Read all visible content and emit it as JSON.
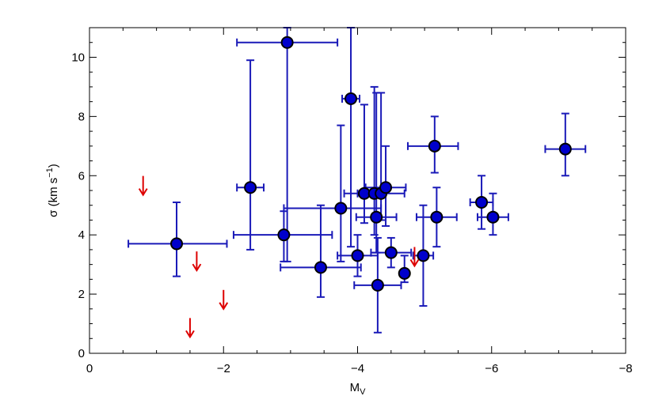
{
  "chart_data": {
    "type": "scatter",
    "title": "",
    "xlabel": "M",
    "xlabel_sub": "V",
    "ylabel": "σ  (km s",
    "ylabel_sup": "−1",
    "ylabel_tail": ")",
    "xlim": [
      0,
      -8
    ],
    "ylim": [
      0,
      11
    ],
    "xticks": [
      0,
      -2,
      -4,
      -6,
      -8
    ],
    "xtick_labels": [
      "0",
      "−2",
      "−4",
      "−6",
      "−8"
    ],
    "yticks": [
      0,
      2,
      4,
      6,
      8,
      10
    ],
    "ytick_labels": [
      "0",
      "2",
      "4",
      "6",
      "8",
      "10"
    ],
    "grid": false,
    "colors": {
      "points": "#0000cc",
      "errorbars": "#1a1ab8",
      "upper_limits": "#dd0000"
    },
    "series": [
      {
        "kind": "measurements",
        "points": [
          {
            "x": -1.3,
            "y": 3.7,
            "xerr": [
              0.72,
              0.75
            ],
            "yerr": [
              1.1,
              1.4
            ]
          },
          {
            "x": -2.4,
            "y": 5.6,
            "xerr": [
              0.2,
              0.2
            ],
            "yerr": [
              2.1,
              4.3
            ]
          },
          {
            "x": -2.9,
            "y": 4.0,
            "xerr": [
              0.75,
              0.72
            ],
            "yerr": [
              0.9,
              0.8
            ]
          },
          {
            "x": -2.95,
            "y": 10.5,
            "xerr": [
              0.75,
              0.75
            ],
            "yerr": [
              7.4,
              0.5
            ]
          },
          {
            "x": -3.45,
            "y": 2.9,
            "xerr": [
              0.6,
              0.6
            ],
            "yerr": [
              1.0,
              2.1
            ]
          },
          {
            "x": -3.75,
            "y": 4.9,
            "xerr": [
              0.85,
              0.6
            ],
            "yerr": [
              1.8,
              2.8
            ]
          },
          {
            "x": -3.9,
            "y": 8.6,
            "xerr": [
              0.13,
              0.13
            ],
            "yerr": [
              5.0,
              2.4
            ]
          },
          {
            "x": -4.0,
            "y": 3.3,
            "xerr": [
              0.3,
              0.3
            ],
            "yerr": [
              0.7,
              0.7
            ]
          },
          {
            "x": -4.1,
            "y": 5.4,
            "xerr": [
              0.3,
              0.3
            ],
            "yerr": [
              1.0,
              3.0
            ]
          },
          {
            "x": -4.25,
            "y": 5.4,
            "xerr": [
              0.1,
              0.1
            ],
            "yerr": [
              1.4,
              3.6
            ]
          },
          {
            "x": -4.28,
            "y": 4.6,
            "xerr": [
              0.3,
              0.3
            ],
            "yerr": [
              1.2,
              4.2
            ]
          },
          {
            "x": -4.3,
            "y": 2.3,
            "xerr": [
              0.35,
              0.35
            ],
            "yerr": [
              1.6,
              1.6
            ]
          },
          {
            "x": -4.35,
            "y": 5.4,
            "xerr": [
              0.35,
              0.35
            ],
            "yerr": [
              0.9,
              3.4
            ]
          },
          {
            "x": -4.42,
            "y": 5.6,
            "xerr": [
              0.3,
              0.3
            ],
            "yerr": [
              1.3,
              1.4
            ]
          },
          {
            "x": -4.5,
            "y": 3.4,
            "xerr": [
              0.3,
              0.3
            ],
            "yerr": [
              0.5,
              0.5
            ]
          },
          {
            "x": -4.7,
            "y": 2.7,
            "xerr": [
              0.06,
              0.06
            ],
            "yerr": [
              0.3,
              0.6
            ]
          },
          {
            "x": -4.98,
            "y": 3.3,
            "xerr": [
              0.15,
              0.15
            ],
            "yerr": [
              1.7,
              1.7
            ]
          },
          {
            "x": -5.15,
            "y": 7.0,
            "xerr": [
              0.4,
              0.35
            ],
            "yerr": [
              0.9,
              1.0
            ]
          },
          {
            "x": -5.18,
            "y": 4.6,
            "xerr": [
              0.3,
              0.3
            ],
            "yerr": [
              1.0,
              1.0
            ]
          },
          {
            "x": -5.85,
            "y": 5.1,
            "xerr": [
              0.17,
              0.17
            ],
            "yerr": [
              0.9,
              0.9
            ]
          },
          {
            "x": -6.02,
            "y": 4.6,
            "xerr": [
              0.23,
              0.23
            ],
            "yerr": [
              0.6,
              0.8
            ]
          },
          {
            "x": -7.1,
            "y": 6.9,
            "xerr": [
              0.3,
              0.3
            ],
            "yerr": [
              0.9,
              1.2
            ]
          }
        ]
      },
      {
        "kind": "upper_limits",
        "points": [
          {
            "x": -0.8,
            "y": 5.35
          },
          {
            "x": -1.6,
            "y": 2.8
          },
          {
            "x": -2.0,
            "y": 1.5
          },
          {
            "x": -1.5,
            "y": 0.55
          },
          {
            "x": -4.85,
            "y": 2.95
          }
        ]
      }
    ]
  }
}
